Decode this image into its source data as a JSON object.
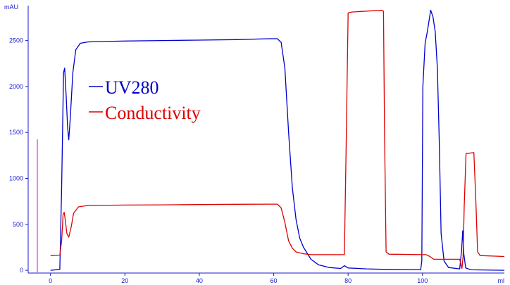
{
  "chart_data": {
    "type": "line",
    "ylabel": "mAU",
    "xlabel": "ml",
    "xlim": [
      -6,
      122
    ],
    "ylim": [
      -30,
      2880
    ],
    "x_ticks": [
      0,
      20,
      40,
      60,
      80,
      100
    ],
    "y_ticks": [
      0,
      500,
      1000,
      1500,
      2000,
      2500
    ],
    "grid": false,
    "legend_position": "upper-left",
    "colors": {
      "axis": "#1a1acc",
      "marker": "#e65ce6"
    },
    "series": [
      {
        "name": "UV280",
        "color": "#0000cc",
        "points": [
          [
            0,
            0
          ],
          [
            2.5,
            10
          ],
          [
            3.0,
            900
          ],
          [
            3.5,
            2150
          ],
          [
            3.8,
            2200
          ],
          [
            4.2,
            1900
          ],
          [
            4.6,
            1550
          ],
          [
            4.9,
            1420
          ],
          [
            5.3,
            1650
          ],
          [
            6.0,
            2150
          ],
          [
            6.8,
            2400
          ],
          [
            8,
            2470
          ],
          [
            10,
            2485
          ],
          [
            15,
            2490
          ],
          [
            20,
            2495
          ],
          [
            30,
            2500
          ],
          [
            40,
            2505
          ],
          [
            50,
            2510
          ],
          [
            59,
            2520
          ],
          [
            61,
            2520
          ],
          [
            62,
            2480
          ],
          [
            63,
            2200
          ],
          [
            64,
            1500
          ],
          [
            65,
            900
          ],
          [
            66,
            550
          ],
          [
            67,
            350
          ],
          [
            68,
            250
          ],
          [
            70,
            120
          ],
          [
            72,
            60
          ],
          [
            75,
            30
          ],
          [
            78,
            20
          ],
          [
            79,
            50
          ],
          [
            80,
            25
          ],
          [
            85,
            15
          ],
          [
            90,
            10
          ],
          [
            99.5,
            5
          ],
          [
            99.8,
            100
          ],
          [
            100.1,
            2000
          ],
          [
            100.7,
            2470
          ],
          [
            101.3,
            2600
          ],
          [
            102.2,
            2830
          ],
          [
            102.8,
            2760
          ],
          [
            103.4,
            2600
          ],
          [
            104,
            2200
          ],
          [
            104.5,
            1400
          ],
          [
            105,
            400
          ],
          [
            105.8,
            100
          ],
          [
            107,
            30
          ],
          [
            110,
            15
          ],
          [
            110.5,
            220
          ],
          [
            110.8,
            430
          ],
          [
            111.1,
            180
          ],
          [
            111.6,
            25
          ],
          [
            113,
            5
          ],
          [
            122,
            0
          ]
        ]
      },
      {
        "name": "Conductivity",
        "color": "#dd0000",
        "points": [
          [
            0,
            160
          ],
          [
            2.5,
            165
          ],
          [
            3.0,
            320
          ],
          [
            3.4,
            610
          ],
          [
            3.7,
            630
          ],
          [
            4.0,
            540
          ],
          [
            4.4,
            400
          ],
          [
            4.9,
            360
          ],
          [
            5.6,
            480
          ],
          [
            6.2,
            620
          ],
          [
            7.5,
            690
          ],
          [
            10,
            705
          ],
          [
            20,
            710
          ],
          [
            30,
            712
          ],
          [
            40,
            715
          ],
          [
            50,
            718
          ],
          [
            59,
            720
          ],
          [
            61,
            720
          ],
          [
            62,
            680
          ],
          [
            63,
            520
          ],
          [
            64,
            320
          ],
          [
            65,
            240
          ],
          [
            66,
            200
          ],
          [
            68,
            180
          ],
          [
            70,
            170
          ],
          [
            79,
            170
          ],
          [
            79.5,
            1400
          ],
          [
            80,
            2800
          ],
          [
            81,
            2810
          ],
          [
            85,
            2820
          ],
          [
            89,
            2830
          ],
          [
            89.5,
            2820
          ],
          [
            89.8,
            1500
          ],
          [
            90.2,
            200
          ],
          [
            91,
            175
          ],
          [
            100,
            170
          ],
          [
            101,
            170
          ],
          [
            102,
            150
          ],
          [
            103,
            120
          ],
          [
            110,
            120
          ],
          [
            110.6,
            20
          ],
          [
            110.9,
            150
          ],
          [
            111.2,
            700
          ],
          [
            111.7,
            1270
          ],
          [
            113.8,
            1280
          ],
          [
            114.3,
            800
          ],
          [
            114.8,
            200
          ],
          [
            115.5,
            160
          ],
          [
            122,
            150
          ]
        ]
      }
    ]
  }
}
